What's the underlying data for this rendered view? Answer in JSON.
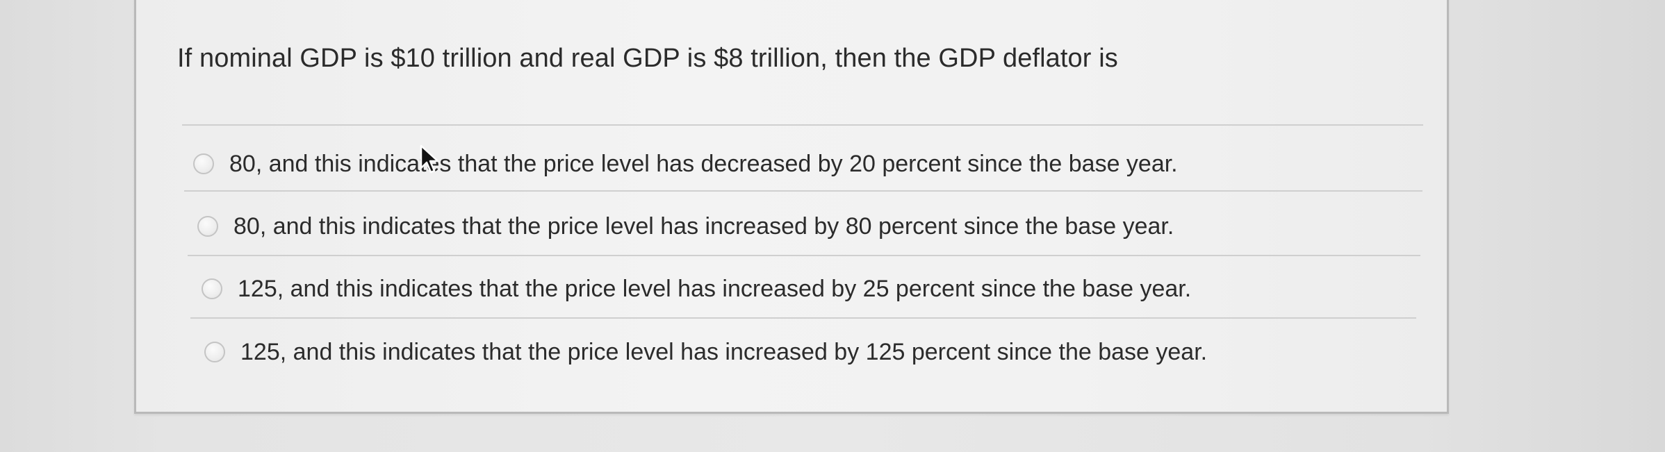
{
  "question": {
    "text": "If nominal GDP is $10 trillion and real GDP is $8 trillion, then the GDP deflator is"
  },
  "options": [
    {
      "label": "80, and this indicates that the price level has decreased by 20 percent since the base year.",
      "selected": false
    },
    {
      "label": "80, and this indicates that the price level has increased by 80 percent since the base year.",
      "selected": false
    },
    {
      "label": "125, and this indicates that the price level has increased by 25 percent since the base year.",
      "selected": false
    },
    {
      "label": "125, and this indicates that the price level has increased by 125 percent since the base year.",
      "selected": false
    }
  ],
  "colors": {
    "text": "#2b2b2b",
    "card_border": "#b9b9b9",
    "divider": "#cfcfcf",
    "radio_border": "#c4c4c4"
  },
  "icons": {
    "pointer": "mouse-pointer-icon",
    "radio": "radio-button-icon"
  }
}
